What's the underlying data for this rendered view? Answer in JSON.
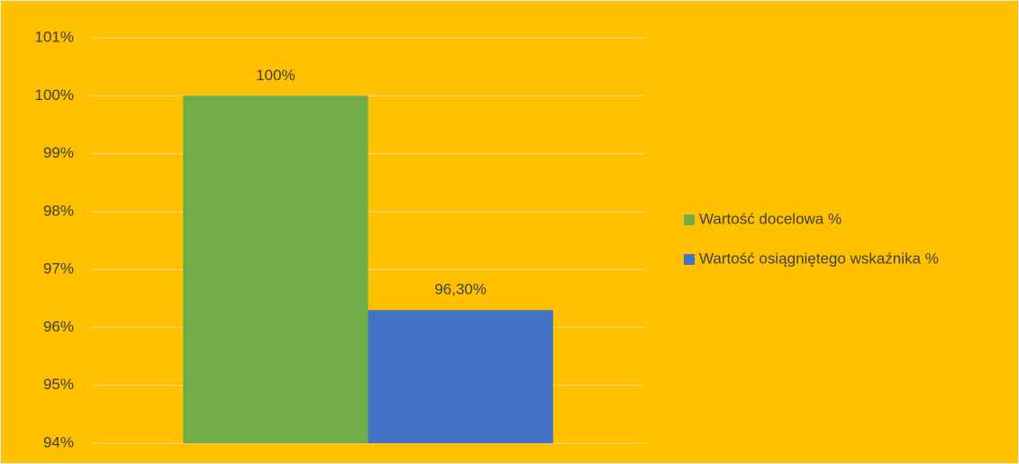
{
  "chart_data": {
    "type": "bar",
    "categories": [
      null
    ],
    "series": [
      {
        "name": "Wartość docelowa %",
        "color": "#70AD47",
        "values": [
          100
        ],
        "value_labels": [
          "100%"
        ]
      },
      {
        "name": "Wartość osiągniętego wskaźnika %",
        "color": "#4472C4",
        "values": [
          96.3
        ],
        "value_labels": [
          "96,30%"
        ]
      }
    ],
    "ylim": [
      94,
      101
    ],
    "yticks": [
      {
        "value": 94,
        "label": "94%"
      },
      {
        "value": 95,
        "label": "95%"
      },
      {
        "value": 96,
        "label": "96%"
      },
      {
        "value": 97,
        "label": "97%"
      },
      {
        "value": 98,
        "label": "98%"
      },
      {
        "value": 99,
        "label": "99%"
      },
      {
        "value": 100,
        "label": "100%"
      },
      {
        "value": 101,
        "label": "101%"
      }
    ],
    "grid": true,
    "legend": "right"
  }
}
